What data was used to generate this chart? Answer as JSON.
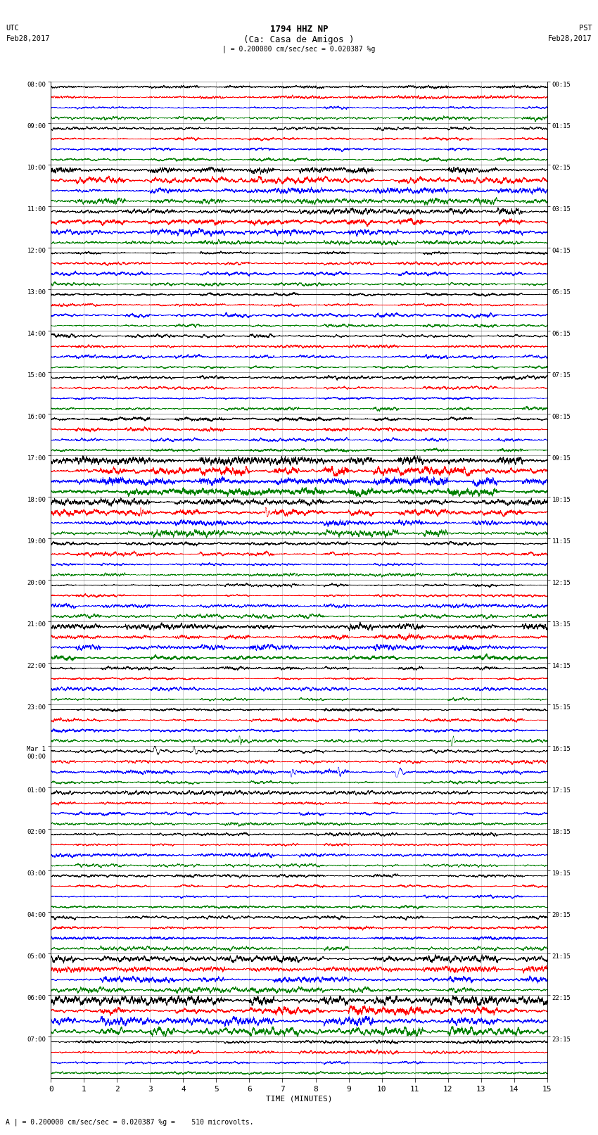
{
  "title_line1": "1794 HHZ NP",
  "title_line2": "(Ca: Casa de Amigos )",
  "scale_text": "| = 0.200000 cm/sec/sec = 0.020387 %g",
  "bottom_scale_text": "A | = 0.200000 cm/sec/sec = 0.020387 %g =    510 microvolts.",
  "utc_label": "UTC",
  "utc_date": "Feb28,2017",
  "pst_label": "PST",
  "pst_date": "Feb28,2017",
  "xlabel": "TIME (MINUTES)",
  "left_times": [
    "08:00",
    "09:00",
    "10:00",
    "11:00",
    "12:00",
    "13:00",
    "14:00",
    "15:00",
    "16:00",
    "17:00",
    "18:00",
    "19:00",
    "20:00",
    "21:00",
    "22:00",
    "23:00",
    "Mar 1\n00:00",
    "01:00",
    "02:00",
    "03:00",
    "04:00",
    "05:00",
    "06:00",
    "07:00"
  ],
  "right_times": [
    "00:15",
    "01:15",
    "02:15",
    "03:15",
    "04:15",
    "05:15",
    "06:15",
    "07:15",
    "08:15",
    "09:15",
    "10:15",
    "11:15",
    "12:15",
    "13:15",
    "14:15",
    "15:15",
    "16:15",
    "17:15",
    "18:15",
    "19:15",
    "20:15",
    "21:15",
    "22:15",
    "23:15"
  ],
  "colors": [
    "black",
    "red",
    "blue",
    "green"
  ],
  "n_rows": 24,
  "traces_per_row": 4,
  "minutes_per_row": 15,
  "xlim": [
    0,
    15
  ],
  "bg_color": "white",
  "fig_width": 8.5,
  "fig_height": 16.13,
  "high_amp_rows": [
    2,
    3,
    9,
    10,
    13,
    21,
    22
  ],
  "very_high_amp_rows": [
    9,
    22
  ],
  "spike_rows": [
    9,
    10,
    15,
    16
  ]
}
